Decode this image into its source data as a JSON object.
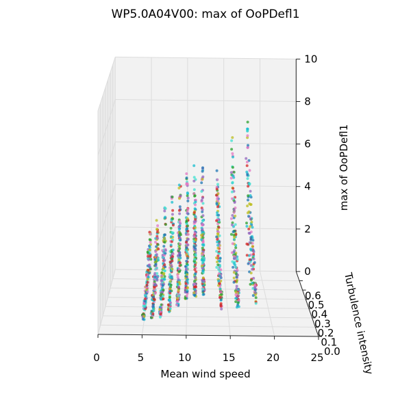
{
  "chart_data": {
    "type": "scatter",
    "title": "WP5.0A04V00: max of OoPDefl1",
    "xlabel": "Mean wind speed",
    "ylabel": "Turbulence intensity",
    "zlabel": "max of OoPDefl1",
    "xlim": [
      0,
      25
    ],
    "ylim": [
      0,
      0.7
    ],
    "zlim": [
      0,
      10
    ],
    "xticks": [
      "0",
      "5",
      "10",
      "15",
      "20",
      "25"
    ],
    "yticks": [
      "0.0",
      "0.1",
      "0.2",
      "0.3",
      "0.4",
      "0.5",
      "0.6"
    ],
    "zticks": [
      "0",
      "2",
      "4",
      "6",
      "8",
      "10"
    ],
    "series_colors": [
      "#1f77b4",
      "#17becf",
      "#2ca02c",
      "#9467bd",
      "#e377c2",
      "#d62728",
      "#bcbd22",
      "#40e0d0"
    ],
    "columns": [
      {
        "x": 5,
        "z": [
          0.3,
          0.5,
          0.7,
          0.9,
          1.3,
          1.8,
          2.4,
          3.0
        ]
      },
      {
        "x": 6,
        "z": [
          0.3,
          0.6,
          1.0,
          1.4,
          1.9,
          2.4,
          2.9,
          3.4
        ]
      },
      {
        "x": 7,
        "z": [
          0.4,
          0.8,
          1.2,
          1.7,
          2.2,
          2.8,
          3.4,
          4.4
        ]
      },
      {
        "x": 8,
        "z": [
          0.6,
          1.0,
          1.5,
          2.1,
          2.7,
          3.3,
          4.0,
          4.8
        ]
      },
      {
        "x": 9,
        "z": [
          0.9,
          1.4,
          2.0,
          2.6,
          3.2,
          3.8,
          4.5,
          5.2
        ]
      },
      {
        "x": 10,
        "z": [
          1.2,
          1.7,
          2.3,
          3.0,
          3.7,
          4.4,
          5.1,
          5.8
        ]
      },
      {
        "x": 11,
        "z": [
          1.3,
          1.9,
          2.6,
          3.3,
          4.0,
          4.7,
          5.4,
          6.0
        ]
      },
      {
        "x": 12,
        "z": [
          1.4,
          2.1,
          2.8,
          3.5,
          4.2,
          4.9,
          5.5,
          6.0
        ]
      },
      {
        "x": 14,
        "z": [
          0.8,
          1.6,
          2.5,
          3.4,
          4.3,
          5.2,
          6.0,
          6.6
        ]
      },
      {
        "x": 16,
        "z": [
          0.7,
          1.7,
          2.7,
          3.7,
          4.7,
          5.7,
          6.7,
          7.5
        ]
      },
      {
        "x": 18,
        "z": [
          0.9,
          2.0,
          3.1,
          4.2,
          5.3,
          6.4,
          7.5,
          8.3
        ]
      }
    ]
  }
}
